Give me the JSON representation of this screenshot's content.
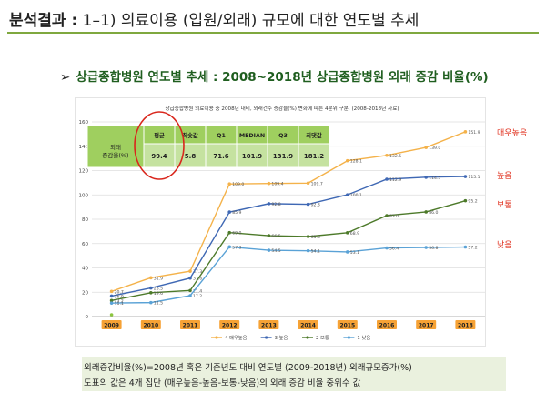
{
  "header": {
    "title_bold": "분석결과 :",
    "title_rest": " 1–1) 의료이용 (입원/외래) 규모에 대한 연도별 추세"
  },
  "section": {
    "arrow": "➢",
    "heading": "상급종합병원 연도별 추세 : 2008~2018년 상급종합병원 외래 증감 비율(%)"
  },
  "chart_data": {
    "type": "line",
    "title": "상급종합병원 의료이용 중 2008년 대비, 외래건수 증감율(%) 변화에 따른 4분위 구분, (2008-2018년 자료)",
    "categories": [
      "2009",
      "2010",
      "2011",
      "2012",
      "2013",
      "2014",
      "2015",
      "2016",
      "2017",
      "2018"
    ],
    "ylim": [
      0,
      160
    ],
    "yticks": [
      0,
      20,
      40,
      60,
      80,
      100,
      120,
      140,
      160
    ],
    "series": [
      {
        "name": "4 매우높음",
        "color": "#f4b24a",
        "values": [
          20.7,
          31.9,
          37.3,
          109.0,
          109.4,
          109.7,
          128.1,
          132.5,
          139.0,
          151.9
        ]
      },
      {
        "name": "3 높음",
        "color": "#3f68b4",
        "values": [
          16.9,
          23.5,
          31.6,
          85.9,
          92.8,
          92.3,
          100.1,
          112.9,
          114.5,
          115.1
        ]
      },
      {
        "name": "2 보통",
        "color": "#4d7a2a",
        "values": [
          13.2,
          19.6,
          21.4,
          69.0,
          66.5,
          65.8,
          68.9,
          83.0,
          86.0,
          95.2
        ]
      },
      {
        "name": "1 낮음",
        "color": "#5aa2d6",
        "values": [
          11.1,
          11.5,
          17.2,
          57.3,
          54.5,
          54.1,
          53.1,
          56.4,
          56.8,
          57.2
        ]
      }
    ],
    "extra_point": {
      "x": "2009",
      "value": 1.5,
      "color": "#8cc63f"
    },
    "stats_table": {
      "row_header": "외래\n증감율(%)",
      "headers": [
        "평균",
        "최솟값",
        "Q1",
        "MEDIAN",
        "Q3",
        "최댓값"
      ],
      "values": [
        "99.4",
        "5.8",
        "71.6",
        "101.9",
        "131.9",
        "181.2"
      ]
    },
    "legend_position": "bottom",
    "right_labels": [
      "매우높음",
      "높음",
      "보통",
      "낮음"
    ]
  },
  "footer": {
    "line1": "외래증감비율(%)=2008년 혹은 기준년도 대비 연도별 (2009-2018년) 외래규모증가(%)",
    "line2": "도표의 값은 4개 집단 (매우높음-높음-보통-낮음)의 외래 증감 비율 중위수 값"
  }
}
